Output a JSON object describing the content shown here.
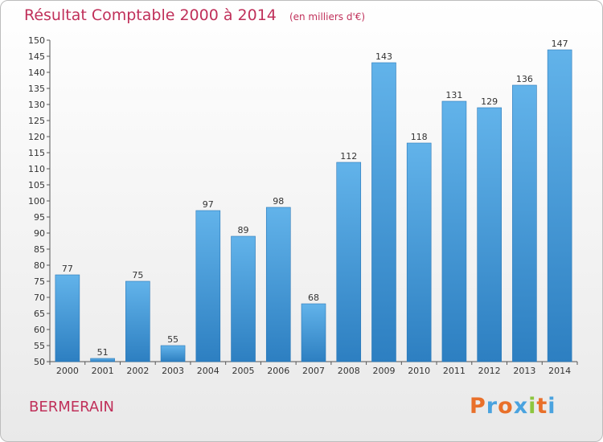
{
  "chart_data": {
    "type": "bar",
    "title": "Résultat Comptable 2000 à 2014",
    "subtitle": "(en milliers d'€)",
    "categories": [
      "2000",
      "2001",
      "2002",
      "2003",
      "2004",
      "2005",
      "2006",
      "2007",
      "2008",
      "2009",
      "2010",
      "2011",
      "2012",
      "2013",
      "2014"
    ],
    "values": [
      77,
      51,
      75,
      55,
      97,
      89,
      98,
      68,
      112,
      143,
      118,
      131,
      129,
      136,
      147
    ],
    "ylim": [
      50,
      150
    ],
    "ytick_step": 5,
    "grid": false,
    "bar_color_top": "#62b3ea",
    "bar_color_bottom": "#2d7fc1",
    "xlabel": "",
    "ylabel": ""
  },
  "commune": "BERMERAIN",
  "logo": {
    "text": "Proxiti",
    "letter_colors": [
      "#e9702a",
      "#4aa3df",
      "#e9702a",
      "#4aa3df",
      "#8dc63f",
      "#e9702a",
      "#4aa3df"
    ]
  }
}
